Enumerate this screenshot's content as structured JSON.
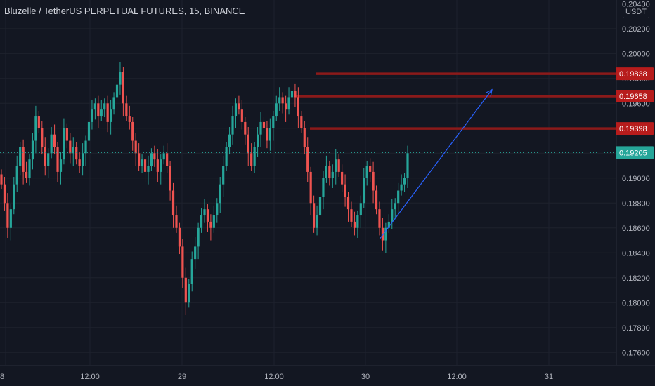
{
  "header": {
    "title": "Bluzelle / TetherUS PERPETUAL FUTURES, 15, BINANCE"
  },
  "axis": {
    "currency": "USDT",
    "y_ticks": [
      "0.20200",
      "0.20000",
      "0.19800",
      "0.19600",
      "0.19400",
      "0.19200",
      "0.19000",
      "0.18800",
      "0.18600",
      "0.18400",
      "0.18200",
      "0.18000",
      "0.17800",
      "0.17600"
    ],
    "y_top_partial": "0.20400",
    "x_ticks": [
      {
        "label": "8",
        "pos": 0
      },
      {
        "label": "12:00",
        "pos": 1
      },
      {
        "label": "29",
        "pos": 2
      },
      {
        "label": "12:00",
        "pos": 3
      },
      {
        "label": "30",
        "pos": 4
      },
      {
        "label": "12:00",
        "pos": 5
      },
      {
        "label": "31",
        "pos": 6
      }
    ]
  },
  "colors": {
    "background": "#131722",
    "up": "#26a69a",
    "down": "#ef5350",
    "grid": "#1e222d",
    "level_line": "#8b1a1a",
    "level_badge": "#b71c1c",
    "arrow": "#2962ff",
    "last_price": "#26a69a"
  },
  "chart_data": {
    "type": "candlestick",
    "title": "Bluzelle / TetherUS PERPETUAL FUTURES, 15, BINANCE",
    "ylim": [
      0.175,
      0.2043
    ],
    "last_price": {
      "value": 0.19205,
      "label": "0.19205"
    },
    "levels": [
      {
        "value": 0.19838,
        "label": "0.19838"
      },
      {
        "value": 0.19658,
        "label": "0.19658"
      },
      {
        "value": 0.19398,
        "label": "0.19398"
      }
    ],
    "projection": {
      "from": 0.1851,
      "to": 0.1971
    },
    "candles": [
      0.1895,
      0.188,
      0.186,
      0.1875,
      0.1895,
      0.191,
      0.1925,
      0.1905,
      0.19,
      0.1915,
      0.193,
      0.195,
      0.194,
      0.1925,
      0.191,
      0.192,
      0.1935,
      0.1925,
      0.1905,
      0.1915,
      0.194,
      0.193,
      0.192,
      0.1925,
      0.1915,
      0.191,
      0.192,
      0.193,
      0.1945,
      0.1955,
      0.196,
      0.195,
      0.1955,
      0.196,
      0.1945,
      0.1955,
      0.1965,
      0.1975,
      0.1985,
      0.196,
      0.195,
      0.1945,
      0.193,
      0.192,
      0.191,
      0.1915,
      0.1905,
      0.191,
      0.192,
      0.1915,
      0.1905,
      0.1915,
      0.192,
      0.191,
      0.189,
      0.187,
      0.186,
      0.1845,
      0.182,
      0.18,
      0.1815,
      0.1835,
      0.1845,
      0.186,
      0.187,
      0.1875,
      0.1865,
      0.186,
      0.187,
      0.188,
      0.1895,
      0.191,
      0.1925,
      0.1935,
      0.195,
      0.196,
      0.1955,
      0.1945,
      0.1935,
      0.192,
      0.191,
      0.1925,
      0.1935,
      0.1945,
      0.194,
      0.193,
      0.194,
      0.195,
      0.196,
      0.1965,
      0.196,
      0.1955,
      0.1965,
      0.197,
      0.1965,
      0.195,
      0.194,
      0.1925,
      0.1905,
      0.188,
      0.186,
      0.187,
      0.1885,
      0.19,
      0.191,
      0.19,
      0.1905,
      0.1915,
      0.1905,
      0.1895,
      0.1885,
      0.1875,
      0.1865,
      0.186,
      0.187,
      0.188,
      0.19,
      0.191,
      0.1905,
      0.189,
      0.1875,
      0.186,
      0.185,
      0.186,
      0.1865,
      0.1875,
      0.188,
      0.189,
      0.1895,
      0.19,
      0.192
    ]
  }
}
